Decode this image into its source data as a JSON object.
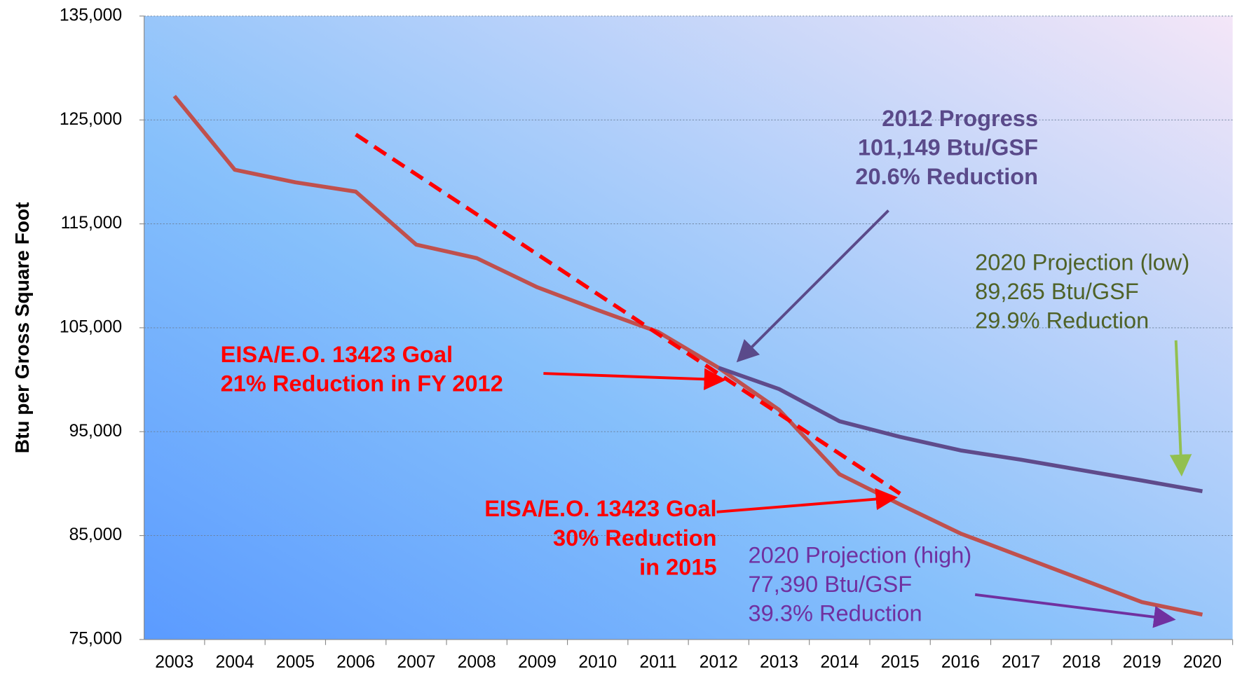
{
  "chart_data": {
    "type": "line",
    "ylabel": "Btu per Gross Square Foot",
    "categories": [
      "2003",
      "2004",
      "2005",
      "2006",
      "2007",
      "2008",
      "2009",
      "2010",
      "2011",
      "2012",
      "2013",
      "2014",
      "2015",
      "2016",
      "2017",
      "2018",
      "2019",
      "2020"
    ],
    "series": [
      {
        "color": "#c0504d",
        "values": [
          127300,
          120200,
          119000,
          118100,
          113000,
          111700,
          108900,
          106700,
          104600,
          101149,
          97100,
          90900,
          88000,
          85200,
          83000,
          80800,
          78600,
          77390
        ]
      },
      {
        "color": "#5f4b8b",
        "values": [
          null,
          null,
          null,
          null,
          null,
          null,
          null,
          null,
          null,
          101149,
          99100,
          96000,
          94500,
          93200,
          92300,
          91300,
          90300,
          89265
        ]
      },
      {
        "color": "#ff0000",
        "dashed": true,
        "values": [
          null,
          null,
          null,
          123600,
          119760,
          115920,
          112080,
          108240,
          104400,
          100560,
          96720,
          92880,
          89040,
          null,
          null,
          null,
          null,
          null
        ]
      }
    ],
    "ylim": [
      75000,
      135000
    ],
    "yticks": [
      {
        "value": 75000,
        "label": "75,000"
      },
      {
        "value": 85000,
        "label": "85,000"
      },
      {
        "value": 95000,
        "label": "95,000"
      },
      {
        "value": 105000,
        "label": "105,000"
      },
      {
        "value": 115000,
        "label": "115,000"
      },
      {
        "value": 125000,
        "label": "125,000"
      },
      {
        "value": 135000,
        "label": "135,000"
      }
    ],
    "grid": true,
    "annotations": [
      {
        "color": "#5a4a8a",
        "bold": true,
        "lines": [
          "2012 Progress",
          "101,149 Btu/GSF",
          "20.6% Reduction"
        ]
      },
      {
        "color": "#4f6228",
        "bold": false,
        "lines": [
          "2020 Projection (low)",
          "89,265 Btu/GSF",
          "29.9% Reduction"
        ]
      },
      {
        "color": "#ff0000",
        "bold": true,
        "lines": [
          "EISA/E.O. 13423 Goal",
          "21% Reduction in FY 2012"
        ]
      },
      {
        "color": "#ff0000",
        "bold": true,
        "lines": [
          "EISA/E.O. 13423 Goal",
          "30% Reduction",
          "in 2015"
        ]
      },
      {
        "color": "#7030a0",
        "bold": false,
        "lines": [
          "2020 Projection (high)",
          "77,390 Btu/GSF",
          "39.3% Reduction"
        ]
      }
    ]
  }
}
